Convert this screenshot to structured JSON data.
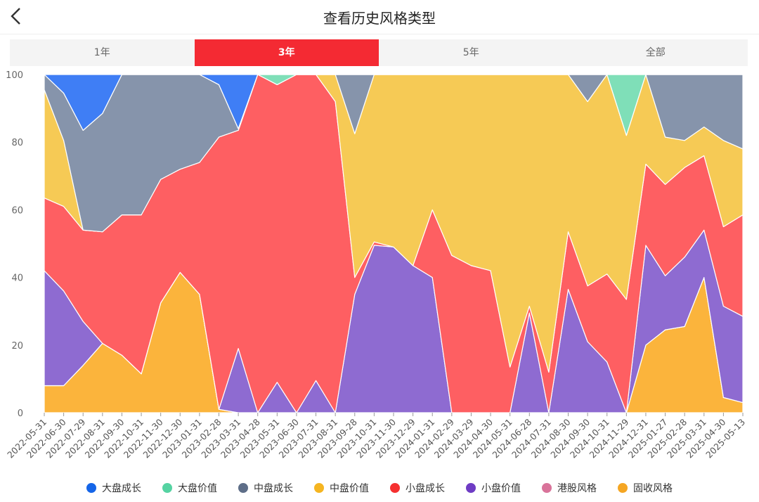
{
  "header": {
    "title": "查看历史风格类型",
    "back_icon": "chevron-left-icon"
  },
  "tabs": [
    {
      "label": "1年",
      "active": false
    },
    {
      "label": "3年",
      "active": true
    },
    {
      "label": "5年",
      "active": false
    },
    {
      "label": "全部",
      "active": false
    }
  ],
  "chart_data": {
    "type": "area",
    "stacked": true,
    "ylim": [
      0,
      100
    ],
    "yticks": [
      0,
      20,
      40,
      60,
      80,
      100
    ],
    "grid": true,
    "legend_position": "bottom",
    "x": [
      "2022-05-31",
      "2022-06-30",
      "2022-07-29",
      "2022-08-31",
      "2022-09-30",
      "2022-10-31",
      "2022-11-30",
      "2022-12-30",
      "2023-01-31",
      "2023-02-28",
      "2023-03-31",
      "2023-04-28",
      "2023-05-31",
      "2023-06-30",
      "2023-07-31",
      "2023-08-31",
      "2023-09-28",
      "2023-10-31",
      "2023-11-30",
      "2023-12-29",
      "2024-01-31",
      "2024-02-29",
      "2024-03-29",
      "2024-04-30",
      "2024-05-31",
      "2024-06-28",
      "2024-07-31",
      "2024-08-30",
      "2024-09-30",
      "2024-10-31",
      "2024-11-29",
      "2024-12-31",
      "2025-01-27",
      "2025-02-28",
      "2025-03-31",
      "2025-04-30",
      "2025-05-13"
    ],
    "series": [
      {
        "name": "固收风格",
        "color": "#fbb43c",
        "values": [
          8,
          8,
          14,
          20.5,
          17,
          11.5,
          32.5,
          41.5,
          35,
          1,
          0,
          0,
          0,
          0,
          0,
          0,
          0,
          0,
          0,
          0,
          0,
          0,
          0,
          0,
          0,
          0,
          0,
          0,
          0,
          0,
          0,
          20,
          24.5,
          25.5,
          40,
          4.5,
          3
        ]
      },
      {
        "name": "港股风格",
        "color": "#d9739a",
        "values": [
          0,
          0,
          0,
          0,
          0,
          0,
          0,
          0,
          0,
          0,
          0,
          0,
          0,
          0,
          0,
          0,
          0,
          0,
          0,
          0,
          0,
          0,
          0,
          0,
          0,
          0,
          0,
          0,
          0,
          0,
          0,
          0,
          0,
          0,
          0,
          0,
          0
        ]
      },
      {
        "name": "小盘价值",
        "color": "#8e6bd1",
        "values": [
          34,
          28,
          13,
          0,
          0,
          0,
          0,
          0,
          0,
          0,
          19,
          0,
          9,
          0,
          9.5,
          0,
          35,
          49.5,
          49,
          43.5,
          40,
          0,
          0,
          0,
          0,
          29.5,
          0,
          36.5,
          21,
          15,
          0,
          29.5,
          16,
          20.5,
          14,
          27,
          25.5
        ]
      },
      {
        "name": "小盘成长",
        "color": "#fe5f62",
        "values": [
          21.5,
          25,
          27,
          33,
          41.5,
          47,
          36.5,
          30.5,
          39,
          80.5,
          64.5,
          100,
          88,
          100,
          90.5,
          92,
          5,
          1,
          0,
          0,
          20,
          46.5,
          43.5,
          42,
          13.5,
          2,
          12,
          17,
          16.5,
          26,
          33.5,
          24,
          27,
          26.5,
          22,
          23.5,
          30
        ]
      },
      {
        "name": "中盘价值",
        "color": "#f6ca55",
        "values": [
          32,
          19.5,
          0,
          0,
          0,
          0,
          0,
          0,
          0,
          0,
          0,
          0,
          0,
          0,
          0,
          8,
          42.5,
          49.5,
          51,
          56.5,
          40,
          53.5,
          56.5,
          58,
          86.5,
          68.5,
          88,
          46.5,
          54.5,
          59,
          48.5,
          26.5,
          14,
          8,
          8.5,
          25.5,
          19.5
        ]
      },
      {
        "name": "中盘成长",
        "color": "#8694ab",
        "values": [
          4.5,
          14,
          29.5,
          35,
          41.5,
          41.5,
          31,
          28,
          26,
          15.5,
          0.5,
          0,
          0,
          0,
          0,
          0,
          17.5,
          0,
          0,
          0,
          0,
          0,
          0,
          0,
          0,
          0,
          0,
          0,
          8,
          0,
          0,
          0,
          18.5,
          19.5,
          15.5,
          19.5,
          22
        ]
      },
      {
        "name": "大盘价值",
        "color": "#7fdfb8",
        "values": [
          0,
          0,
          0,
          0,
          0,
          0,
          0,
          0,
          0,
          0,
          0,
          0,
          3,
          0,
          0,
          0,
          0,
          0,
          0,
          0,
          0,
          0,
          0,
          0,
          0,
          0,
          0,
          0,
          0,
          0,
          18,
          0,
          0,
          0,
          0,
          0,
          0
        ]
      },
      {
        "name": "大盘成长",
        "color": "#3f7ef5",
        "values": [
          0,
          5.5,
          16.5,
          11.5,
          0,
          0,
          0,
          0,
          0,
          3,
          16,
          0,
          0,
          0,
          0,
          0,
          0,
          0,
          0,
          0,
          0,
          0,
          0,
          0,
          0,
          0,
          0,
          0,
          0,
          0,
          0,
          0,
          0,
          0,
          0,
          0,
          0
        ]
      }
    ],
    "legend": [
      {
        "name": "大盘成长",
        "color": "#1565e8"
      },
      {
        "name": "大盘价值",
        "color": "#55d3a2"
      },
      {
        "name": "中盘成长",
        "color": "#5e6e88"
      },
      {
        "name": "中盘价值",
        "color": "#f5b521"
      },
      {
        "name": "小盘成长",
        "color": "#f53030"
      },
      {
        "name": "小盘价值",
        "color": "#6e3cc4"
      },
      {
        "name": "港股风格",
        "color": "#d9739a"
      },
      {
        "name": "固收风格",
        "color": "#f5a623"
      }
    ]
  }
}
